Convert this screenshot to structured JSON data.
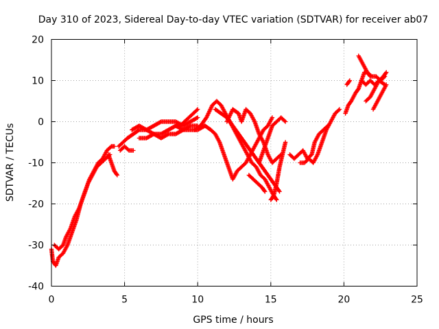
{
  "chart_data": {
    "type": "scatter",
    "title": "Day 310 of 2023, Sidereal Day-to-day VTEC variation (SDTVAR) for receiver ab07",
    "xlabel": "GPS time / hours",
    "ylabel": "SDTVAR / TECUs",
    "xlim": [
      0,
      25
    ],
    "ylim": [
      -40,
      20
    ],
    "xticks": [
      "0",
      "5",
      "10",
      "15",
      "20",
      "25"
    ],
    "yticks": [
      "-40",
      "-30",
      "-20",
      "-10",
      "0",
      "10",
      "20"
    ],
    "grid": true,
    "marker": "plus",
    "color": "#ff0000",
    "traces": [
      [
        [
          0.0,
          -31
        ],
        [
          0.1,
          -34
        ],
        [
          0.3,
          -35
        ],
        [
          0.5,
          -33
        ],
        [
          0.8,
          -32
        ],
        [
          1.1,
          -30
        ],
        [
          1.4,
          -27
        ],
        [
          1.7,
          -24
        ],
        [
          2.0,
          -20
        ],
        [
          2.3,
          -17
        ],
        [
          2.6,
          -14
        ],
        [
          2.9,
          -12
        ],
        [
          3.2,
          -10
        ],
        [
          3.5,
          -9
        ],
        [
          3.8,
          -7
        ],
        [
          4.1,
          -6
        ],
        [
          4.3,
          -6
        ]
      ],
      [
        [
          0.2,
          -30
        ],
        [
          0.5,
          -31
        ],
        [
          0.8,
          -30
        ],
        [
          1.0,
          -28
        ],
        [
          1.3,
          -26
        ],
        [
          1.6,
          -23
        ],
        [
          1.9,
          -21
        ],
        [
          2.2,
          -18
        ],
        [
          2.5,
          -15
        ],
        [
          2.8,
          -13
        ],
        [
          3.1,
          -11
        ],
        [
          3.4,
          -10
        ],
        [
          3.7,
          -9
        ],
        [
          4.0,
          -8
        ]
      ],
      [
        [
          3.9,
          -8
        ],
        [
          4.1,
          -10
        ],
        [
          4.3,
          -12
        ],
        [
          4.5,
          -13
        ]
      ],
      [
        [
          4.6,
          -6
        ],
        [
          4.9,
          -5
        ],
        [
          5.2,
          -4
        ],
        [
          5.6,
          -3
        ],
        [
          6.0,
          -2
        ],
        [
          6.5,
          -2
        ],
        [
          7.0,
          -3
        ],
        [
          7.5,
          -3
        ],
        [
          8.0,
          -2
        ],
        [
          8.5,
          -1
        ],
        [
          9.0,
          -2
        ],
        [
          9.5,
          -1
        ],
        [
          10.0,
          -1
        ]
      ],
      [
        [
          4.7,
          -7
        ],
        [
          5.0,
          -6
        ],
        [
          5.3,
          -7
        ],
        [
          5.6,
          -7
        ]
      ],
      [
        [
          5.5,
          -2
        ],
        [
          6.0,
          -1
        ],
        [
          6.5,
          -2
        ],
        [
          7.0,
          -1
        ],
        [
          7.5,
          0
        ],
        [
          8.0,
          0
        ],
        [
          8.5,
          0
        ],
        [
          9.0,
          -1
        ],
        [
          9.5,
          0
        ],
        [
          10.0,
          1
        ]
      ],
      [
        [
          6.0,
          -4
        ],
        [
          6.5,
          -4
        ],
        [
          7.0,
          -3
        ],
        [
          7.5,
          -4
        ],
        [
          8.0,
          -3
        ],
        [
          8.5,
          -3
        ],
        [
          9.0,
          -2
        ],
        [
          9.5,
          -2
        ],
        [
          10.0,
          -2
        ],
        [
          10.5,
          -1
        ]
      ],
      [
        [
          8.5,
          -1
        ],
        [
          8.8,
          -1
        ],
        [
          9.1,
          0
        ],
        [
          9.4,
          1
        ],
        [
          9.7,
          2
        ],
        [
          10.0,
          3
        ]
      ],
      [
        [
          9.8,
          -2
        ],
        [
          10.2,
          -1
        ],
        [
          10.6,
          1
        ],
        [
          11.0,
          4
        ],
        [
          11.3,
          5
        ],
        [
          11.6,
          4
        ],
        [
          11.9,
          2
        ],
        [
          12.2,
          0
        ],
        [
          12.5,
          -2
        ],
        [
          12.8,
          -4
        ],
        [
          13.1,
          -6
        ],
        [
          13.4,
          -8
        ],
        [
          13.7,
          -10
        ],
        [
          14.0,
          -11
        ],
        [
          14.3,
          -13
        ],
        [
          14.6,
          -14
        ],
        [
          14.9,
          -16
        ],
        [
          15.2,
          -18
        ],
        [
          15.4,
          -19
        ]
      ],
      [
        [
          10.5,
          -1
        ],
        [
          10.9,
          -2
        ],
        [
          11.2,
          -3
        ],
        [
          11.5,
          -5
        ],
        [
          11.8,
          -8
        ],
        [
          12.1,
          -11
        ],
        [
          12.4,
          -14
        ],
        [
          12.7,
          -12
        ],
        [
          13.0,
          -11
        ],
        [
          13.3,
          -10
        ],
        [
          13.6,
          -8
        ],
        [
          13.9,
          -6
        ],
        [
          14.2,
          -4
        ],
        [
          14.5,
          -2
        ],
        [
          14.8,
          -1
        ],
        [
          15.1,
          1
        ]
      ],
      [
        [
          11.2,
          3
        ],
        [
          11.6,
          2
        ],
        [
          12.0,
          1
        ],
        [
          12.4,
          -1
        ],
        [
          12.8,
          -3
        ],
        [
          13.2,
          -5
        ],
        [
          13.6,
          -7
        ],
        [
          14.0,
          -9
        ],
        [
          14.4,
          -11
        ],
        [
          14.8,
          -13
        ],
        [
          15.2,
          -15
        ],
        [
          15.6,
          -17
        ]
      ],
      [
        [
          12.0,
          0
        ],
        [
          12.4,
          3
        ],
        [
          12.8,
          2
        ],
        [
          13.0,
          0
        ],
        [
          13.3,
          3
        ],
        [
          13.6,
          2
        ],
        [
          13.9,
          0
        ],
        [
          14.2,
          -3
        ],
        [
          14.5,
          -5
        ],
        [
          14.8,
          -8
        ],
        [
          15.1,
          -10
        ],
        [
          15.4,
          -9
        ],
        [
          15.7,
          -8
        ]
      ],
      [
        [
          13.5,
          -13
        ],
        [
          13.8,
          -14
        ],
        [
          14.1,
          -15
        ],
        [
          14.4,
          -16
        ],
        [
          14.6,
          -17
        ]
      ],
      [
        [
          14.2,
          -10
        ],
        [
          14.5,
          -7
        ],
        [
          14.8,
          -4
        ],
        [
          15.1,
          -1
        ],
        [
          15.4,
          0
        ],
        [
          15.7,
          1
        ],
        [
          16.0,
          0
        ]
      ],
      [
        [
          15.0,
          -19
        ],
        [
          15.2,
          -18
        ],
        [
          15.4,
          -15
        ],
        [
          15.6,
          -11
        ],
        [
          15.8,
          -8
        ],
        [
          16.0,
          -5
        ]
      ],
      [
        [
          16.3,
          -8
        ],
        [
          16.6,
          -9
        ],
        [
          16.9,
          -8
        ],
        [
          17.2,
          -7
        ],
        [
          17.5,
          -9
        ],
        [
          17.8,
          -8
        ],
        [
          18.0,
          -5
        ],
        [
          18.3,
          -3
        ],
        [
          18.6,
          -2
        ],
        [
          18.9,
          -1
        ]
      ],
      [
        [
          17.0,
          -10
        ],
        [
          17.3,
          -10
        ],
        [
          17.6,
          -9
        ],
        [
          17.9,
          -10
        ],
        [
          18.2,
          -8
        ],
        [
          18.5,
          -5
        ],
        [
          18.8,
          -2
        ],
        [
          19.1,
          0
        ],
        [
          19.4,
          2
        ],
        [
          19.7,
          3
        ]
      ],
      [
        [
          20.1,
          2
        ],
        [
          20.3,
          4
        ],
        [
          20.5,
          5
        ],
        [
          20.8,
          7
        ],
        [
          21.0,
          8
        ],
        [
          21.2,
          10
        ],
        [
          21.4,
          12
        ],
        [
          21.6,
          12
        ],
        [
          21.8,
          11
        ]
      ],
      [
        [
          20.2,
          9
        ],
        [
          20.4,
          10
        ]
      ],
      [
        [
          21.0,
          16
        ],
        [
          21.3,
          14
        ],
        [
          21.6,
          12
        ],
        [
          21.9,
          11
        ],
        [
          22.2,
          11
        ],
        [
          22.5,
          10
        ],
        [
          22.8,
          11
        ]
      ],
      [
        [
          21.5,
          5
        ],
        [
          21.8,
          6
        ],
        [
          22.1,
          8
        ],
        [
          22.4,
          10
        ],
        [
          22.7,
          11
        ],
        [
          22.9,
          12
        ]
      ],
      [
        [
          21.2,
          10
        ],
        [
          21.5,
          9
        ],
        [
          21.8,
          10
        ],
        [
          22.1,
          9
        ],
        [
          22.4,
          10
        ],
        [
          22.8,
          9
        ]
      ],
      [
        [
          22.0,
          3
        ],
        [
          22.3,
          5
        ],
        [
          22.6,
          7
        ],
        [
          22.9,
          9
        ]
      ]
    ]
  }
}
